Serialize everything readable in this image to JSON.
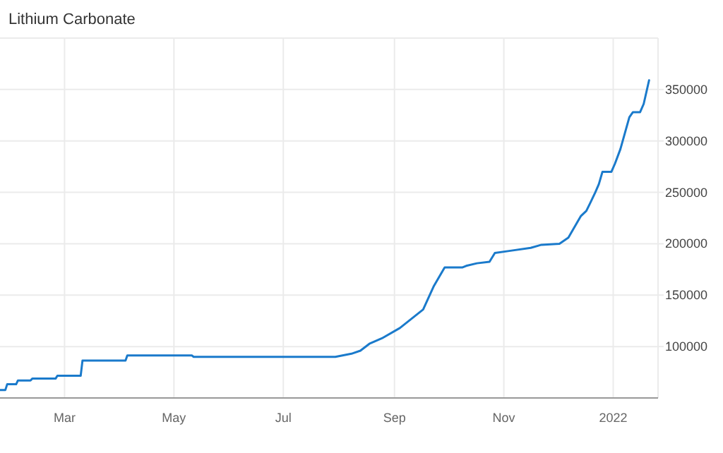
{
  "chart_data": {
    "type": "line",
    "title": "Lithium Carbonate",
    "x": [
      "2021-01-24",
      "2021-01-27",
      "2021-01-28",
      "2021-02-02",
      "2021-02-03",
      "2021-02-10",
      "2021-02-11",
      "2021-02-24",
      "2021-02-25",
      "2021-03-10",
      "2021-03-11",
      "2021-04-04",
      "2021-04-05",
      "2021-05-11",
      "2021-05-12",
      "2021-07-30",
      "2021-08-08",
      "2021-08-13",
      "2021-08-18",
      "2021-08-25",
      "2021-09-04",
      "2021-09-17",
      "2021-09-23",
      "2021-09-29",
      "2021-10-09",
      "2021-10-11",
      "2021-10-17",
      "2021-10-24",
      "2021-10-27",
      "2021-11-04",
      "2021-11-16",
      "2021-11-22",
      "2021-12-02",
      "2021-12-07",
      "2021-12-12",
      "2021-12-14",
      "2021-12-17",
      "2021-12-19",
      "2021-12-22",
      "2021-12-24",
      "2021-12-26",
      "2021-12-31",
      "2022-01-02",
      "2022-01-05",
      "2022-01-10",
      "2022-01-12",
      "2022-01-16",
      "2022-01-18",
      "2022-01-21"
    ],
    "series": [
      {
        "color": "#1a7acb",
        "values": [
          57800,
          57800,
          63300,
          63300,
          67000,
          67000,
          68800,
          68800,
          71600,
          71600,
          86300,
          86300,
          91300,
          91300,
          90000,
          90000,
          93000,
          96000,
          102700,
          108000,
          118000,
          136000,
          159000,
          177000,
          177000,
          178500,
          181000,
          182500,
          191000,
          193000,
          196000,
          199000,
          200000,
          206000,
          221000,
          227000,
          232000,
          239000,
          250000,
          258000,
          270000,
          270000,
          278000,
          292000,
          323000,
          328000,
          328000,
          336000,
          359000
        ]
      }
    ],
    "xlim": [
      "2021-01-24",
      "2022-01-26"
    ],
    "xticks": [
      {
        "value": "2021-03-01",
        "label": "Mar"
      },
      {
        "value": "2021-05-01",
        "label": "May"
      },
      {
        "value": "2021-07-01",
        "label": "Jul"
      },
      {
        "value": "2021-09-01",
        "label": "Sep"
      },
      {
        "value": "2021-11-01",
        "label": "Nov"
      },
      {
        "value": "2022-01-01",
        "label": "2022"
      }
    ],
    "ylim": [
      50000,
      400000
    ],
    "yticks": [
      100000,
      150000,
      200000,
      250000,
      300000,
      350000
    ],
    "grid": true
  }
}
